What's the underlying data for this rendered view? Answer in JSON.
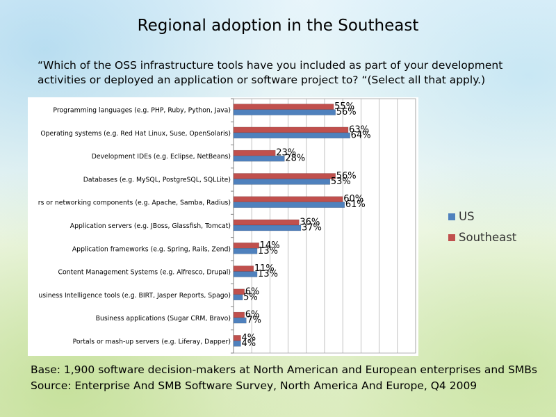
{
  "slide": {
    "title": "Regional adoption in the Southeast",
    "question": "“Which of the OSS infrastructure tools have you included as part of your development activities or deployed an application or software project to? “(Select all that apply.)",
    "base": "Base: 1,900 software decision-makers at North American and European enterprises and SMBs",
    "source": "Source: Enterprise And SMB Software Survey, North America And Europe, Q4 2009"
  },
  "chart_data": {
    "type": "bar",
    "orientation": "horizontal",
    "categories": [
      "Programming languages (e.g. PHP, Ruby, Python, Java)",
      "Operating systems (e.g. Red Hat Linux, Suse, OpenSolaris)",
      "Development IDEs (e.g. Eclipse, NetBeans)",
      "Databases (e.g. MySQL, PostgreSQL, SQLLite)",
      "rs or networking components (e.g. Apache, Samba, Radius)",
      "Application servers (e.g. JBoss, Glassfish, Tomcat)",
      "Application frameworks (e.g. Spring, Rails, Zend)",
      "Content Management Systems (e.g. Alfresco, Drupal)",
      "usiness Intelligence tools (e.g. BIRT, Jasper Reports, Spago)",
      "Business applications (Sugar CRM, Bravo)",
      "Portals or mash-up servers (e.g. Liferay, Dapper)"
    ],
    "series": [
      {
        "name": "US",
        "color": "#4F81BD",
        "values": [
          56,
          64,
          28,
          53,
          61,
          37,
          13,
          13,
          5,
          7,
          4
        ]
      },
      {
        "name": "Southeast",
        "color": "#C0504D",
        "values": [
          55,
          63,
          23,
          56,
          60,
          36,
          14,
          11,
          6,
          6,
          4
        ]
      }
    ],
    "value_suffix": "%",
    "xlim": [
      0,
      100
    ],
    "grid": true,
    "legend_position": "right"
  }
}
